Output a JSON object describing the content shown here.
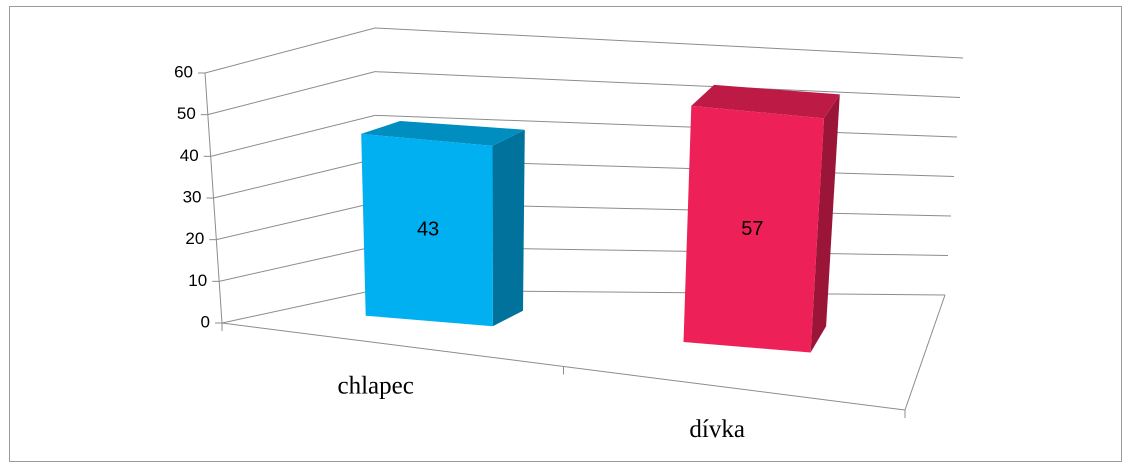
{
  "chart_data": {
    "type": "bar3d",
    "categories": [
      "chlapec",
      "dívka"
    ],
    "values": [
      43,
      57
    ],
    "colors": [
      "#00b0f0",
      "#ee2058"
    ],
    "ylim": [
      0,
      60
    ],
    "yticks": [
      0,
      10,
      20,
      30,
      40,
      50,
      60
    ],
    "grid": true
  }
}
